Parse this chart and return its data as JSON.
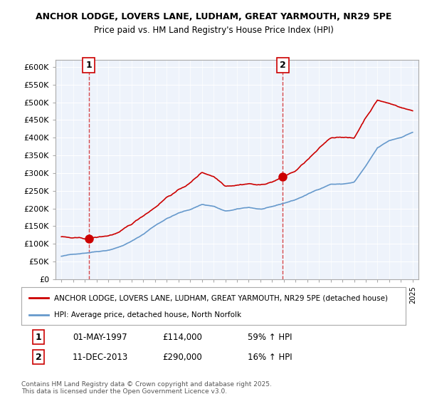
{
  "title1": "ANCHOR LODGE, LOVERS LANE, LUDHAM, GREAT YARMOUTH, NR29 5PE",
  "title2": "Price paid vs. HM Land Registry's House Price Index (HPI)",
  "ylabel_ticks": [
    "£0",
    "£50K",
    "£100K",
    "£150K",
    "£200K",
    "£250K",
    "£300K",
    "£350K",
    "£400K",
    "£450K",
    "£500K",
    "£550K",
    "£600K"
  ],
  "ytick_vals": [
    0,
    50000,
    100000,
    150000,
    200000,
    250000,
    300000,
    350000,
    400000,
    450000,
    500000,
    550000,
    600000
  ],
  "ylim": [
    0,
    620000
  ],
  "xlim_start": 1994.5,
  "xlim_end": 2025.5,
  "sale1_x": 1997.33,
  "sale1_y": 114000,
  "sale1_label": "1",
  "sale2_x": 2013.92,
  "sale2_y": 290000,
  "sale2_label": "2",
  "legend_line1": "ANCHOR LODGE, LOVERS LANE, LUDHAM, GREAT YARMOUTH, NR29 5PE (detached house)",
  "legend_line2": "HPI: Average price, detached house, North Norfolk",
  "annotation1": "1     01-MAY-1997          £114,000          59% ↑ HPI",
  "annotation2": "2     11-DEC-2013          £290,000          16% ↑ HPI",
  "footer": "Contains HM Land Registry data © Crown copyright and database right 2025.\nThis data is licensed under the Open Government Licence v3.0.",
  "bg_color": "#eef3fb",
  "grid_color": "#ffffff",
  "red_line_color": "#cc0000",
  "blue_line_color": "#6699cc"
}
